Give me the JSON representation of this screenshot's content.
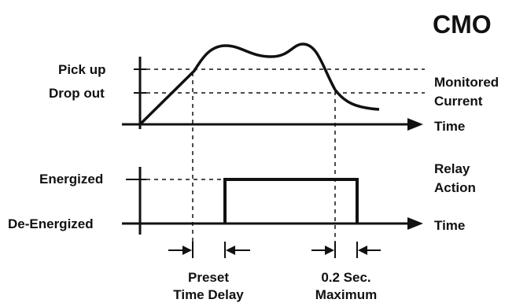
{
  "title": "CMO",
  "top_graph": {
    "pickup_label": "Pick up",
    "dropout_label": "Drop out",
    "signal_label_line1": "Monitored",
    "signal_label_line2": "Current",
    "time_label": "Time"
  },
  "bottom_graph": {
    "energized_label": "Energized",
    "deenergized_label": "De-Energized",
    "action_label_line1": "Relay",
    "action_label_line2": "Action",
    "time_label": "Time"
  },
  "intervals": {
    "preset_line1": "Preset",
    "preset_line2": "Time Delay",
    "max_line1": "0.2 Sec.",
    "max_line2": "Maximum"
  },
  "colors": {
    "ink": "#111111",
    "background": "#ffffff"
  }
}
